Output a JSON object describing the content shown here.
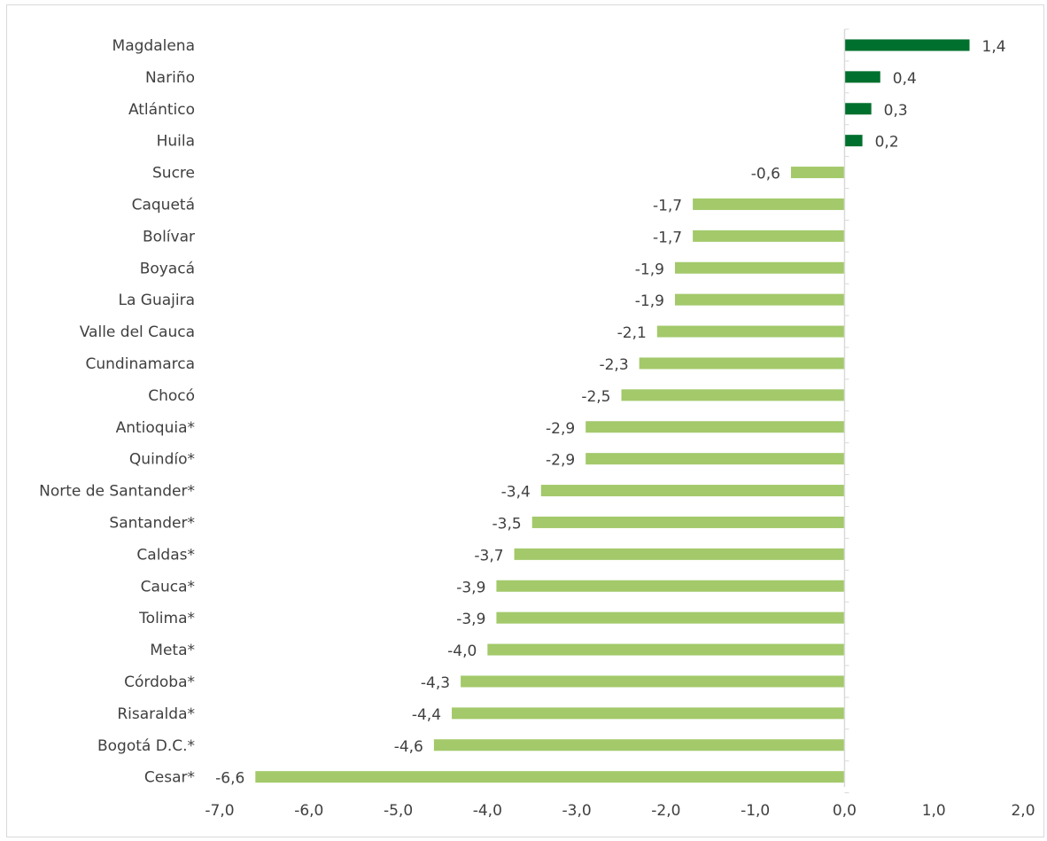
{
  "chart_data": {
    "type": "bar",
    "orientation": "horizontal",
    "categories": [
      "Magdalena",
      "Nariño",
      "Atlántico",
      "Huila",
      "Sucre",
      "Caquetá",
      "Bolívar",
      "Boyacá",
      "La Guajira",
      "Valle del Cauca",
      "Cundinamarca",
      "Chocó",
      "Antioquia*",
      "Quindío*",
      "Norte de Santander*",
      "Santander*",
      "Caldas*",
      "Cauca*",
      "Tolima*",
      "Meta*",
      "Córdoba*",
      "Risaralda*",
      "Bogotá D.C.*",
      "Cesar*"
    ],
    "values": [
      1.4,
      0.4,
      0.3,
      0.2,
      -0.6,
      -1.7,
      -1.7,
      -1.9,
      -1.9,
      -2.1,
      -2.3,
      -2.5,
      -2.9,
      -2.9,
      -3.4,
      -3.5,
      -3.7,
      -3.9,
      -3.9,
      -4.0,
      -4.3,
      -4.4,
      -4.6,
      -6.6
    ],
    "data_labels": [
      "1,4",
      "0,4",
      "0,3",
      "0,2",
      "-0,6",
      "-1,7",
      "-1,7",
      "-1,9",
      "-1,9",
      "-2,1",
      "-2,3",
      "-2,5",
      "-2,9",
      "-2,9",
      "-3,4",
      "-3,5",
      "-3,7",
      "-3,9",
      "-3,9",
      "-4,0",
      "-4,3",
      "-4,4",
      "-4,6",
      "-6,6"
    ],
    "xlim": [
      -7.0,
      2.0
    ],
    "xticks": [
      -7,
      -6,
      -5,
      -4,
      -3,
      -2,
      -1,
      0,
      1,
      2
    ],
    "xtick_labels": [
      "-7,0",
      "-6,0",
      "-5,0",
      "-4,0",
      "-3,0",
      "-2,0",
      "-1,0",
      "0,0",
      "1,0",
      "2,0"
    ],
    "title": "",
    "xlabel": "",
    "ylabel": "",
    "grid": false,
    "legend": "none",
    "colors": {
      "positive": "#00702e",
      "negative": "#a3c96a",
      "axis": "#d9d9d9",
      "text": "#404040"
    }
  }
}
